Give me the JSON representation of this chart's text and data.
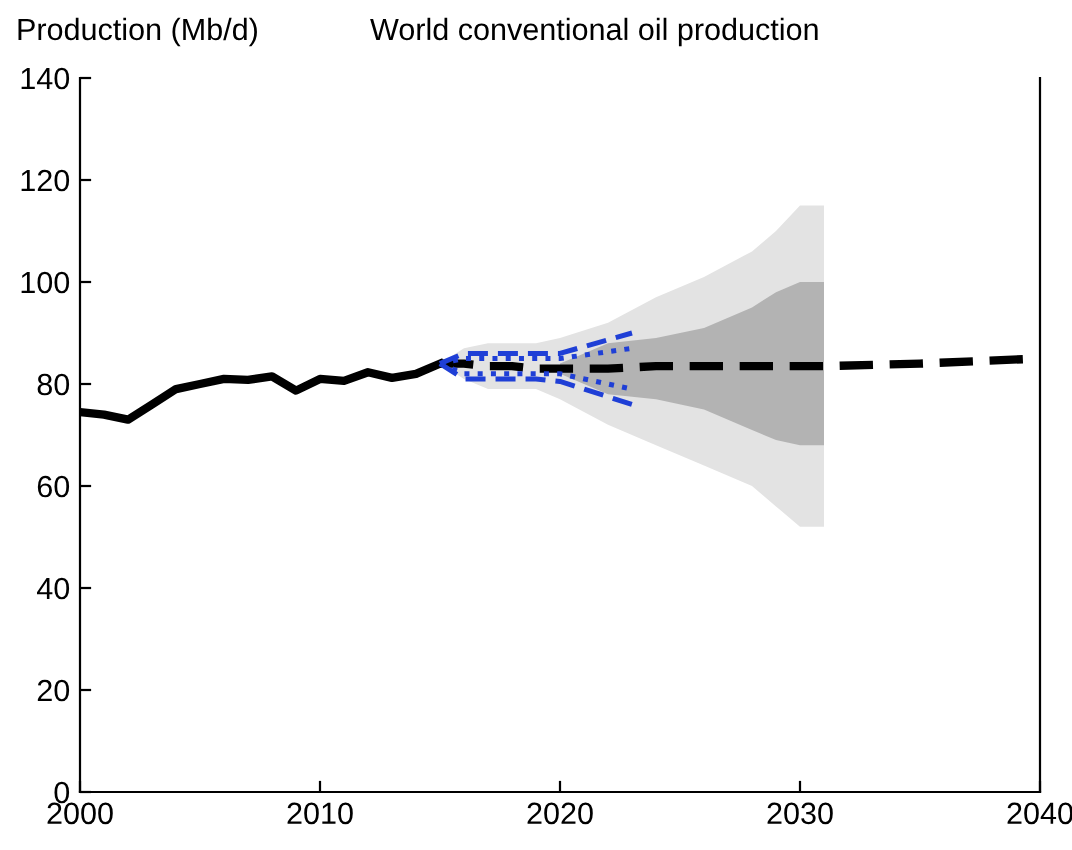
{
  "chart_data": {
    "type": "line",
    "title": "World conventional oil production",
    "ylabel": "Production (Mb/d)",
    "xlim": [
      2000,
      2040
    ],
    "ylim": [
      0,
      140
    ],
    "xticks": [
      2000,
      2010,
      2020,
      2030,
      2040
    ],
    "yticks": [
      0,
      20,
      40,
      60,
      80,
      100,
      120,
      140
    ],
    "grid": false,
    "legend": false,
    "series": [
      {
        "color": "#000000",
        "x": [
          2000,
          2001,
          2002,
          2003,
          2004,
          2005,
          2006,
          2007,
          2008,
          2009,
          2010,
          2011,
          2012,
          2013,
          2014,
          2015
        ],
        "values": [
          74.5,
          74,
          73,
          76,
          79,
          80,
          81,
          80.8,
          81.5,
          78.7,
          81,
          80.6,
          82.3,
          81.2,
          82,
          84
        ],
        "line_style": "solid"
      },
      {
        "color": "#000000",
        "x": [
          2015,
          2016,
          2017,
          2018,
          2019,
          2020,
          2022,
          2024,
          2026,
          2028,
          2029,
          2030,
          2031,
          2035,
          2040
        ],
        "values": [
          84,
          84,
          83.5,
          83.5,
          83,
          83,
          83,
          83.5,
          83.5,
          83.5,
          83.5,
          83.5,
          83.5,
          84,
          85
        ],
        "upper": [
          84,
          87,
          88,
          88,
          88,
          89,
          92,
          97,
          101,
          106,
          110,
          115,
          115,
          null,
          null
        ],
        "lower": [
          84,
          81,
          79,
          79,
          79,
          77,
          72,
          68,
          64,
          60,
          56,
          52,
          52,
          null,
          null
        ],
        "line_style": "dashed"
      },
      {
        "color": "#b3b3b3",
        "x": [
          2020,
          2021,
          2022,
          2024,
          2026,
          2028,
          2029,
          2030,
          2031
        ],
        "values": [
          null,
          null,
          null,
          null,
          null,
          null,
          null,
          null,
          null
        ],
        "upper": [
          84,
          86,
          88,
          89,
          91,
          95,
          98,
          100,
          100
        ],
        "lower": [
          82,
          80,
          78,
          77,
          75,
          71,
          69,
          68,
          68
        ]
      },
      {
        "color": "#1f3fd6",
        "x": [
          2015,
          2016,
          2019,
          2020,
          2023
        ],
        "values": [
          84,
          86,
          86,
          86,
          90
        ],
        "line_style": "dashed"
      },
      {
        "color": "#1f3fd6",
        "x": [
          2015,
          2016,
          2019,
          2020,
          2023
        ],
        "values": [
          84,
          81,
          81,
          80.5,
          76
        ],
        "line_style": "dashed"
      },
      {
        "color": "#1f3fd6",
        "x": [
          2015,
          2016,
          2020,
          2023
        ],
        "values": [
          84,
          85,
          85,
          87
        ],
        "line_style": "dotted"
      },
      {
        "color": "#1f3fd6",
        "x": [
          2015,
          2016,
          2020,
          2023
        ],
        "values": [
          84,
          82,
          82,
          79
        ],
        "line_style": "dotted"
      }
    ]
  }
}
